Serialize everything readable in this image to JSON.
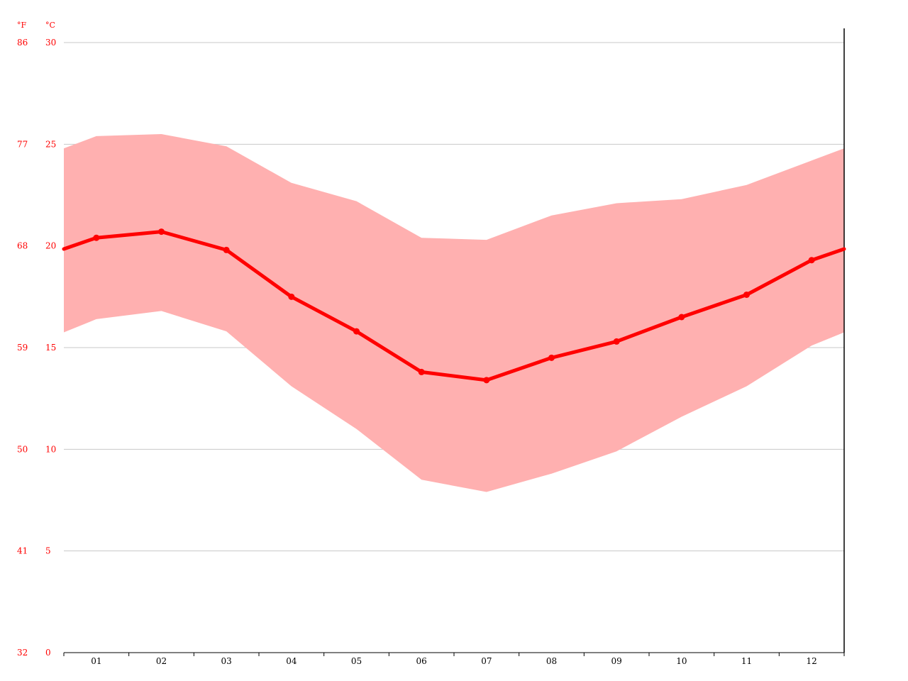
{
  "chart_data": {
    "type": "line",
    "title": "",
    "units": {
      "fahrenheit": "°F",
      "celsius": "°C"
    },
    "x": [
      "01",
      "02",
      "03",
      "04",
      "05",
      "06",
      "07",
      "08",
      "09",
      "10",
      "11",
      "12"
    ],
    "y_celsius_ticks": [
      "0",
      "5",
      "10",
      "15",
      "20",
      "25",
      "30"
    ],
    "y_fahrenheit_ticks": [
      "32",
      "41",
      "50",
      "59",
      "68",
      "77",
      "86"
    ],
    "ylim": [
      0,
      30
    ],
    "grid": true,
    "series": [
      {
        "values": [
          20.4,
          20.7,
          19.8,
          17.5,
          15.8,
          13.8,
          13.4,
          14.5,
          15.3,
          16.5,
          17.6,
          19.3
        ]
      }
    ],
    "range_band": {
      "low": [
        16.4,
        16.8,
        15.8,
        13.1,
        11.0,
        8.5,
        7.9,
        8.8,
        9.9,
        11.6,
        13.1,
        15.1
      ],
      "high": [
        25.4,
        25.5,
        24.9,
        23.1,
        22.2,
        20.4,
        20.3,
        21.5,
        22.1,
        22.3,
        23.0,
        24.2
      ]
    },
    "colors": {
      "line": "#ff0000",
      "band": "#ffb0b0",
      "axis_text": "#ff0000",
      "grid": "#c8c8c8"
    }
  }
}
